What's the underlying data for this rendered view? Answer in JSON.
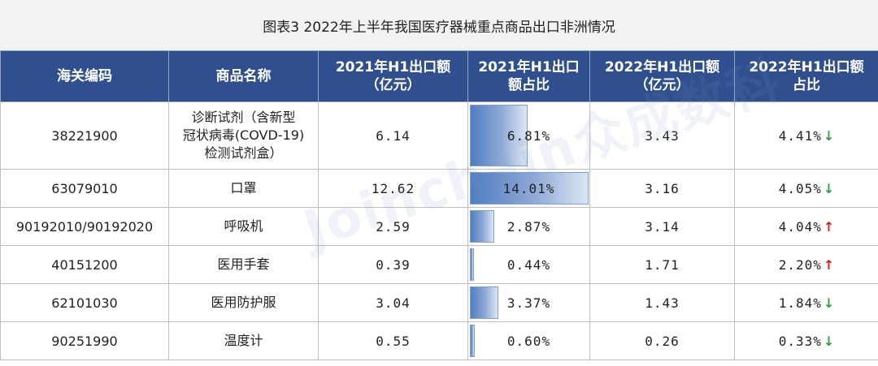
{
  "title": "图表3   2022年上半年我国医疗器械重点商品出口非洲情况",
  "headers": [
    "海关编码",
    "商品名称",
    "2021年H1出口额（亿元）",
    "2021年H1出口额占比",
    "2022年H1出口额（亿元）",
    "2022年H1出口额占比"
  ],
  "header_lines": [
    [
      "海关编码"
    ],
    [
      "商品名称"
    ],
    [
      "2021年H1出口额",
      "（亿元）"
    ],
    [
      "2021年H1出口",
      "额占比"
    ],
    [
      "2022年H1出口额",
      "（亿元）"
    ],
    [
      "2022年H1出口额",
      "占比"
    ]
  ],
  "rows": [
    {
      "code": "38221900",
      "name_lines": [
        "诊断试剂（含新型",
        "冠状病毒(COVD-19)",
        "检测试剂盒）"
      ],
      "v2021": "6.14",
      "s2021": "6.81%",
      "s2021_num": 6.81,
      "v2022": "3.43",
      "s2022": "4.41%",
      "trend": "down"
    },
    {
      "code": "63079010",
      "name_lines": [
        "口罩"
      ],
      "v2021": "12.62",
      "s2021": "14.01%",
      "s2021_num": 14.01,
      "v2022": "3.16",
      "s2022": "4.05%",
      "trend": "down"
    },
    {
      "code": "90192010/90192020",
      "name_lines": [
        "呼吸机"
      ],
      "v2021": "2.59",
      "s2021": "2.87%",
      "s2021_num": 2.87,
      "v2022": "3.14",
      "s2022": "4.04%",
      "trend": "up"
    },
    {
      "code": "40151200",
      "name_lines": [
        "医用手套"
      ],
      "v2021": "0.39",
      "s2021": "0.44%",
      "s2021_num": 0.44,
      "v2022": "1.71",
      "s2022": "2.20%",
      "trend": "up"
    },
    {
      "code": "62101030",
      "name_lines": [
        "医用防护服"
      ],
      "v2021": "3.04",
      "s2021": "3.37%",
      "s2021_num": 3.37,
      "v2022": "1.43",
      "s2022": "1.84%",
      "trend": "down"
    },
    {
      "code": "90251990",
      "name_lines": [
        "温度计"
      ],
      "v2021": "0.55",
      "s2021": "0.60%",
      "s2021_num": 0.6,
      "v2022": "0.26",
      "s2022": "0.33%",
      "trend": "down"
    }
  ],
  "bar_max": 14.01,
  "arrows": {
    "down": "↓",
    "up": "↑"
  },
  "colors": {
    "header_bg": "#2f4f8f",
    "bar": "#4f7ec1",
    "up": "#d81e1e",
    "down": "#2e9e3e"
  },
  "watermark": "Joinchain众成数科"
}
